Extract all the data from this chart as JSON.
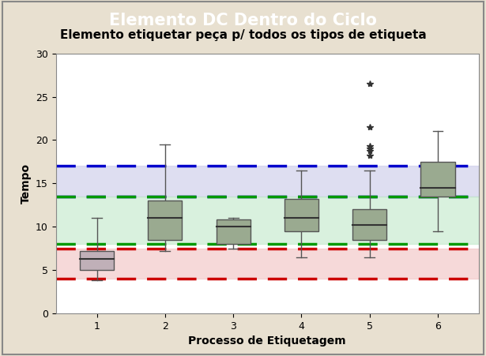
{
  "title": "Elemento DC Dentro do Ciclo",
  "subtitle": "Elemento etiquetar peça p/ todos os tipos de etiqueta",
  "xlabel": "Processo de Etiquetagem",
  "ylabel": "Tempo",
  "title_bg": "#000000",
  "title_color": "#ffffff",
  "outer_bg": "#e8e0d0",
  "ax_bg": "#ffffff",
  "ylim": [
    0,
    30
  ],
  "yticks": [
    0,
    5,
    10,
    15,
    20,
    25,
    30
  ],
  "xticks": [
    1,
    2,
    3,
    4,
    5,
    6
  ],
  "boxes": [
    {
      "x": 1,
      "q1": 5.0,
      "med": 6.3,
      "q3": 7.2,
      "whislo": 3.8,
      "whishi": 11.0,
      "fliers": []
    },
    {
      "x": 2,
      "q1": 8.5,
      "med": 11.0,
      "q3": 13.0,
      "whislo": 7.2,
      "whishi": 19.5,
      "fliers": []
    },
    {
      "x": 3,
      "q1": 8.0,
      "med": 10.0,
      "q3": 10.8,
      "whislo": 7.5,
      "whishi": 11.0,
      "fliers": []
    },
    {
      "x": 4,
      "q1": 9.5,
      "med": 11.0,
      "q3": 13.2,
      "whislo": 6.5,
      "whishi": 16.5,
      "fliers": []
    },
    {
      "x": 5,
      "q1": 8.5,
      "med": 10.2,
      "q3": 12.0,
      "whislo": 6.5,
      "whishi": 16.5,
      "fliers": [
        18.2,
        18.8,
        19.0,
        19.3,
        21.5,
        26.5
      ]
    },
    {
      "x": 6,
      "q1": 13.5,
      "med": 14.5,
      "q3": 17.5,
      "whislo": 9.5,
      "whishi": 21.0,
      "fliers": []
    }
  ],
  "box1_facecolor": "#c0b0b8",
  "box_facecolor": "#9aaa90",
  "box6_facecolor": "#a0a8a0",
  "box_edgecolor": "#555555",
  "median_color": "#333333",
  "whisker_color": "#555555",
  "flier_color": "#333333",
  "band_blue_low": 13.5,
  "band_blue_high": 17.0,
  "band_blue_color": "#c8c8e8",
  "band_blue_alpha": 0.6,
  "band_blue_line": "#0000cc",
  "band_green_low": 8.0,
  "band_green_high": 13.5,
  "band_green_color": "#c0e8c8",
  "band_green_alpha": 0.6,
  "band_green_line": "#009900",
  "band_red_low": 4.0,
  "band_red_high": 7.5,
  "band_red_color": "#f0c0c0",
  "band_red_alpha": 0.6,
  "band_red_line": "#cc0000",
  "box_width": 0.5,
  "title_fontsize": 15,
  "subtitle_fontsize": 11,
  "axis_label_fontsize": 10,
  "tick_fontsize": 9
}
